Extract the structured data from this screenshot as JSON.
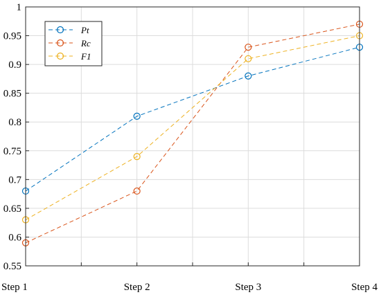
{
  "chart_data": {
    "type": "line",
    "categories": [
      "Step 1",
      "Step 2",
      "Step 3",
      "Step 4"
    ],
    "ylim": [
      0.55,
      1.0
    ],
    "yticks": [
      "0.55",
      "0.6",
      "0.65",
      "0.7",
      "0.75",
      "0.8",
      "0.85",
      "0.9",
      "0.95",
      "1"
    ],
    "grid": true,
    "legend_position": "top-left",
    "series": [
      {
        "name": "Pt",
        "values": [
          0.68,
          0.81,
          0.88,
          0.93
        ],
        "color": "#0072BD"
      },
      {
        "name": "Rc",
        "values": [
          0.59,
          0.68,
          0.93,
          0.97
        ],
        "color": "#D95319"
      },
      {
        "name": "F1",
        "values": [
          0.63,
          0.74,
          0.91,
          0.95
        ],
        "color": "#EDB120"
      }
    ]
  }
}
